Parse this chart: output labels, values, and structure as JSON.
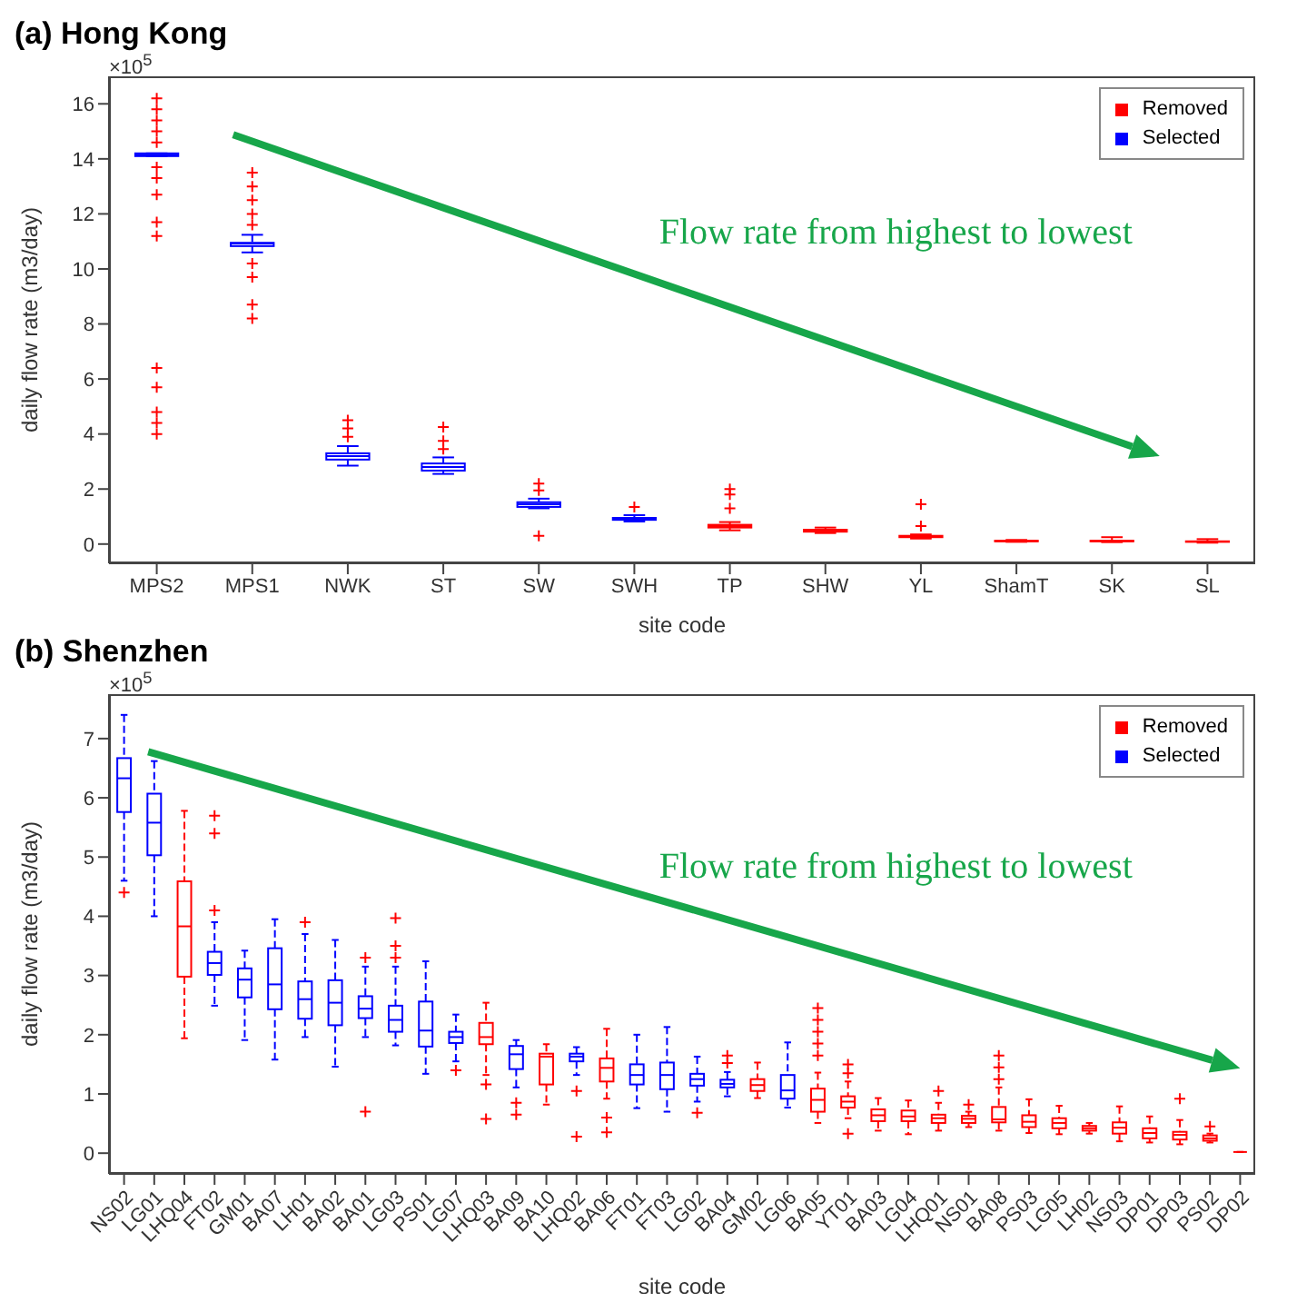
{
  "chart_data": [
    {
      "type": "box",
      "title": "(a) Hong Kong",
      "xlabel": "site code",
      "ylabel": "daily flow rate (m3/day)",
      "annotations": [
        "×10$^{5}$",
        "Flow rate from highest to lowest"
      ],
      "categories": [
        "MPS2",
        "MPS1",
        "NWK",
        "ST",
        "SW",
        "SWH",
        "TP",
        "SHW",
        "YL",
        "ShamT",
        "SK",
        "SL"
      ],
      "ylim": [
        -0.7,
        17
      ],
      "yticks": [
        0,
        2,
        4,
        6,
        8,
        10,
        12,
        14,
        16
      ],
      "legend": "top right",
      "marker": "cross",
      "series": [
        {
          "name": "Removed",
          "color": "#ff0000",
          "boxes": [
            null,
            null,
            null,
            null,
            null,
            null,
            {
              "low": 0.5,
              "q1": 0.6,
              "median": 0.65,
              "q3": 0.7,
              "high": 0.8
            },
            {
              "low": 0.4,
              "q1": 0.45,
              "median": 0.5,
              "q3": 0.52,
              "high": 0.6
            },
            {
              "low": 0.2,
              "q1": 0.25,
              "median": 0.28,
              "q3": 0.3,
              "high": 0.35
            },
            {
              "low": 0.08,
              "q1": 0.1,
              "median": 0.11,
              "q3": 0.12,
              "high": 0.15
            },
            {
              "low": 0.07,
              "q1": 0.1,
              "median": 0.11,
              "q3": 0.12,
              "high": 0.25
            },
            {
              "low": 0.05,
              "q1": 0.08,
              "median": 0.09,
              "q3": 0.1,
              "high": 0.18
            }
          ]
        },
        {
          "name": "Selected",
          "color": "#0000ff",
          "boxes": [
            {
              "low": 14.1,
              "q1": 14.1,
              "median": 14.15,
              "q3": 14.2,
              "high": 14.2
            },
            {
              "low": 10.6,
              "q1": 10.83,
              "median": 10.92,
              "q3": 10.95,
              "high": 11.24
            },
            {
              "low": 2.85,
              "q1": 3.07,
              "median": 3.2,
              "q3": 3.3,
              "high": 3.56
            },
            {
              "low": 2.55,
              "q1": 2.67,
              "median": 2.8,
              "q3": 2.93,
              "high": 3.15
            },
            {
              "low": 1.3,
              "q1": 1.35,
              "median": 1.45,
              "q3": 1.52,
              "high": 1.65
            },
            {
              "low": 0.82,
              "q1": 0.88,
              "median": 0.92,
              "q3": 0.95,
              "high": 1.05
            },
            null,
            null,
            null,
            null,
            null,
            null
          ]
        },
        {
          "type": "scatter",
          "color": "#ff0000",
          "x": [
            "MPS2",
            "MPS2",
            "MPS2",
            "MPS2",
            "MPS2",
            "MPS2",
            "MPS2",
            "MPS2",
            "MPS2",
            "MPS2",
            "MPS2",
            "MPS2",
            "MPS2",
            "MPS2",
            "MPS2",
            "MPS1",
            "MPS1",
            "MPS1",
            "MPS1",
            "MPS1",
            "MPS1",
            "MPS1",
            "MPS1",
            "MPS1",
            "NWK",
            "NWK",
            "NWK",
            "ST",
            "ST",
            "ST",
            "SW",
            "SW",
            "SW",
            "SWH",
            "TP",
            "TP",
            "TP",
            "YL",
            "YL"
          ],
          "values": [
            16.2,
            15.8,
            15.4,
            15.0,
            14.6,
            13.7,
            13.3,
            12.7,
            11.7,
            11.2,
            6.4,
            5.7,
            4.8,
            4.4,
            4.0,
            13.5,
            13.0,
            12.5,
            12.0,
            11.6,
            10.2,
            9.7,
            8.7,
            8.2,
            4.5,
            4.2,
            3.9,
            4.25,
            3.75,
            3.45,
            2.2,
            1.95,
            0.3,
            1.35,
            2.0,
            1.8,
            1.3,
            1.45,
            0.65
          ]
        }
      ]
    },
    {
      "type": "box",
      "title": "(b) Shenzhen",
      "xlabel": "site code",
      "ylabel": "daily flow rate (m3/day)",
      "annotations": [
        "×10$^{5}$",
        "Flow rate from highest to lowest"
      ],
      "categories": [
        "NS02",
        "LG01",
        "LHQ04",
        "FT02",
        "GM01",
        "BA07",
        "LH01",
        "BA02",
        "BA01",
        "LG03",
        "PS01",
        "LG07",
        "LHQ03",
        "BA09",
        "BA10",
        "LHQ02",
        "BA06",
        "FT01",
        "FT03",
        "LG02",
        "BA04",
        "GM02",
        "LG06",
        "BA05",
        "YT01",
        "BA03",
        "LG04",
        "LHQ01",
        "NS01",
        "BA08",
        "PS03",
        "LG05",
        "LH02",
        "NS03",
        "DP01",
        "DP03",
        "PS02",
        "DP02"
      ],
      "ylim": [
        -0.35,
        7.75
      ],
      "yticks": [
        0,
        1,
        2,
        3,
        4,
        5,
        6,
        7
      ],
      "legend": "top right",
      "marker": "cross",
      "series": [
        {
          "name": "Removed",
          "color": "#ff0000",
          "boxes": [
            null,
            null,
            {
              "low": 1.94,
              "q1": 2.98,
              "median": 3.83,
              "q3": 4.59,
              "high": 5.78
            },
            null,
            null,
            null,
            null,
            null,
            null,
            null,
            null,
            null,
            {
              "low": 1.32,
              "q1": 1.84,
              "median": 1.96,
              "q3": 2.2,
              "high": 2.54
            },
            null,
            {
              "low": 0.82,
              "q1": 1.16,
              "median": 1.63,
              "q3": 1.68,
              "high": 1.84
            },
            null,
            {
              "low": 0.92,
              "q1": 1.21,
              "median": 1.44,
              "q3": 1.6,
              "high": 2.1
            },
            null,
            null,
            null,
            null,
            {
              "low": 0.93,
              "q1": 1.05,
              "median": 1.15,
              "q3": 1.25,
              "high": 1.53
            },
            null,
            {
              "low": 0.51,
              "q1": 0.7,
              "median": 0.9,
              "q3": 1.09,
              "high": 1.36
            },
            {
              "low": 0.59,
              "q1": 0.77,
              "median": 0.87,
              "q3": 0.96,
              "high": 1.21
            },
            {
              "low": 0.38,
              "q1": 0.54,
              "median": 0.64,
              "q3": 0.74,
              "high": 0.93
            },
            {
              "low": 0.32,
              "q1": 0.54,
              "median": 0.62,
              "q3": 0.72,
              "high": 0.89
            },
            {
              "low": 0.38,
              "q1": 0.51,
              "median": 0.59,
              "q3": 0.65,
              "high": 0.85
            },
            {
              "low": 0.44,
              "q1": 0.51,
              "median": 0.58,
              "q3": 0.63,
              "high": 0.7
            },
            {
              "low": 0.38,
              "q1": 0.52,
              "median": 0.57,
              "q3": 0.78,
              "high": 1.11
            },
            {
              "low": 0.34,
              "q1": 0.44,
              "median": 0.53,
              "q3": 0.64,
              "high": 0.91
            },
            {
              "low": 0.32,
              "q1": 0.42,
              "median": 0.51,
              "q3": 0.59,
              "high": 0.8
            },
            {
              "low": 0.33,
              "q1": 0.38,
              "median": 0.42,
              "q3": 0.46,
              "high": 0.51
            },
            {
              "low": 0.2,
              "q1": 0.33,
              "median": 0.43,
              "q3": 0.52,
              "high": 0.79
            },
            {
              "low": 0.18,
              "q1": 0.25,
              "median": 0.34,
              "q3": 0.42,
              "high": 0.62
            },
            {
              "low": 0.15,
              "q1": 0.23,
              "median": 0.31,
              "q3": 0.36,
              "high": 0.56
            },
            {
              "low": 0.18,
              "q1": 0.21,
              "median": 0.25,
              "q3": 0.3,
              "high": 0.33
            },
            {
              "low": 0.02,
              "q1": 0.02,
              "median": 0.02,
              "q3": 0.02,
              "high": 0.02
            }
          ]
        },
        {
          "name": "Selected",
          "color": "#0000ff",
          "boxes": [
            {
              "low": 4.6,
              "q1": 5.76,
              "median": 6.33,
              "q3": 6.67,
              "high": 7.4
            },
            {
              "low": 4.0,
              "q1": 5.03,
              "median": 5.58,
              "q3": 6.07,
              "high": 6.62
            },
            null,
            {
              "low": 2.49,
              "q1": 3.01,
              "median": 3.21,
              "q3": 3.4,
              "high": 3.9
            },
            {
              "low": 1.91,
              "q1": 2.63,
              "median": 2.93,
              "q3": 3.12,
              "high": 3.42
            },
            {
              "low": 1.58,
              "q1": 2.43,
              "median": 2.85,
              "q3": 3.46,
              "high": 3.95
            },
            {
              "low": 1.96,
              "q1": 2.27,
              "median": 2.6,
              "q3": 2.9,
              "high": 3.7
            },
            {
              "low": 1.46,
              "q1": 2.16,
              "median": 2.54,
              "q3": 2.92,
              "high": 3.6
            },
            {
              "low": 1.96,
              "q1": 2.28,
              "median": 2.44,
              "q3": 2.65,
              "high": 3.15
            },
            {
              "low": 1.82,
              "q1": 2.05,
              "median": 2.25,
              "q3": 2.49,
              "high": 3.15
            },
            {
              "low": 1.34,
              "q1": 1.8,
              "median": 2.07,
              "q3": 2.56,
              "high": 3.24
            },
            {
              "low": 1.55,
              "q1": 1.86,
              "median": 1.96,
              "q3": 2.05,
              "high": 2.34
            },
            null,
            {
              "low": 1.11,
              "q1": 1.42,
              "median": 1.67,
              "q3": 1.81,
              "high": 1.91
            },
            null,
            {
              "low": 1.32,
              "q1": 1.55,
              "median": 1.63,
              "q3": 1.68,
              "high": 1.79
            },
            null,
            {
              "low": 0.76,
              "q1": 1.16,
              "median": 1.32,
              "q3": 1.5,
              "high": 2.0
            },
            {
              "low": 0.7,
              "q1": 1.08,
              "median": 1.32,
              "q3": 1.53,
              "high": 2.13
            },
            {
              "low": 0.87,
              "q1": 1.14,
              "median": 1.25,
              "q3": 1.34,
              "high": 1.63
            },
            {
              "low": 0.96,
              "q1": 1.11,
              "median": 1.17,
              "q3": 1.24,
              "high": 1.37
            },
            null,
            {
              "low": 0.77,
              "q1": 0.92,
              "median": 1.06,
              "q3": 1.32,
              "high": 1.87
            },
            null,
            null,
            null,
            null,
            null,
            null,
            null,
            null,
            null,
            null,
            null,
            null,
            null,
            null,
            null
          ]
        },
        {
          "type": "scatter",
          "color": "#ff0000",
          "x": [
            "NS02",
            "FT02",
            "FT02",
            "FT02",
            "LH01",
            "BA01",
            "BA01",
            "LG03",
            "LG03",
            "LG03",
            "LG07",
            "LHQ03",
            "LHQ03",
            "BA09",
            "BA09",
            "LHQ02",
            "LHQ02",
            "BA06",
            "BA06",
            "LG02",
            "BA04",
            "BA04",
            "BA05",
            "BA05",
            "BA05",
            "BA05",
            "BA05",
            "YT01",
            "YT01",
            "YT01",
            "LHQ01",
            "NS01",
            "BA08",
            "BA08",
            "BA08",
            "DP03",
            "PS02"
          ],
          "values": [
            4.4,
            5.7,
            5.4,
            4.1,
            3.9,
            3.3,
            0.7,
            3.97,
            3.5,
            3.3,
            1.4,
            1.16,
            0.58,
            0.85,
            0.65,
            1.05,
            0.28,
            0.6,
            0.35,
            0.68,
            1.65,
            1.52,
            2.45,
            2.25,
            2.05,
            1.85,
            1.65,
            1.5,
            1.35,
            0.33,
            1.05,
            0.82,
            1.65,
            1.45,
            1.25,
            0.92,
            0.45
          ]
        }
      ]
    }
  ]
}
